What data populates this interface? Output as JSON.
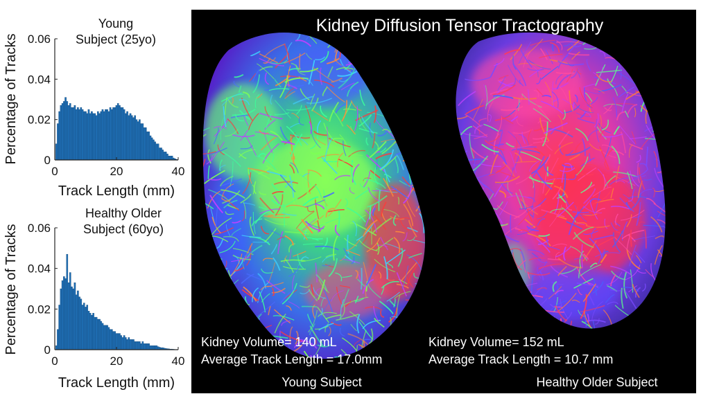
{
  "chart_data": [
    {
      "type": "bar",
      "title": "Young\nSubject (25yo)",
      "xlabel": "Track Length (mm)",
      "ylabel": "Percentage of Tracks",
      "xlim": [
        0,
        40
      ],
      "ylim": [
        0,
        0.06
      ],
      "xticks": [
        "0",
        "20",
        "40"
      ],
      "yticks": [
        "0",
        "0.02",
        "0.04",
        "0.06"
      ],
      "bar_color": "#1f6fb5",
      "x": [
        0.5,
        1,
        1.5,
        2,
        2.5,
        3,
        3.5,
        4,
        4.5,
        5,
        5.5,
        6,
        6.5,
        7,
        7.5,
        8,
        8.5,
        9,
        9.5,
        10,
        10.5,
        11,
        11.5,
        12,
        12.5,
        13,
        13.5,
        14,
        14.5,
        15,
        15.5,
        16,
        16.5,
        17,
        17.5,
        18,
        18.5,
        19,
        19.5,
        20,
        20.5,
        21,
        21.5,
        22,
        22.5,
        23,
        23.5,
        24,
        24.5,
        25,
        25.5,
        26,
        26.5,
        27,
        27.5,
        28,
        28.5,
        29,
        29.5,
        30,
        30.5,
        31,
        31.5,
        32,
        32.5,
        33,
        33.5,
        34,
        34.5,
        35,
        35.5,
        36,
        36.5,
        37,
        37.5,
        38,
        38.5,
        39,
        39.5
      ],
      "values": [
        0.008,
        0.018,
        0.024,
        0.027,
        0.028,
        0.029,
        0.031,
        0.029,
        0.027,
        0.028,
        0.026,
        0.026,
        0.027,
        0.025,
        0.026,
        0.025,
        0.026,
        0.025,
        0.024,
        0.024,
        0.023,
        0.025,
        0.023,
        0.024,
        0.023,
        0.023,
        0.022,
        0.024,
        0.023,
        0.024,
        0.025,
        0.024,
        0.025,
        0.025,
        0.024,
        0.026,
        0.025,
        0.026,
        0.026,
        0.027,
        0.028,
        0.027,
        0.026,
        0.026,
        0.025,
        0.023,
        0.024,
        0.022,
        0.023,
        0.022,
        0.021,
        0.022,
        0.02,
        0.019,
        0.02,
        0.018,
        0.018,
        0.016,
        0.016,
        0.014,
        0.014,
        0.012,
        0.011,
        0.01,
        0.009,
        0.008,
        0.008,
        0.006,
        0.006,
        0.005,
        0.004,
        0.004,
        0.003,
        0.002,
        0.002,
        0.002,
        0.001,
        0.0006,
        0.0003
      ]
    },
    {
      "type": "bar",
      "title": "Healthy Older\nSubject (60yo)",
      "xlabel": "Track Length (mm)",
      "ylabel": "Percentage of Tracks",
      "xlim": [
        0,
        40
      ],
      "ylim": [
        0,
        0.06
      ],
      "xticks": [
        "0",
        "20",
        "40"
      ],
      "yticks": [
        "0",
        "0.02",
        "0.04",
        "0.06"
      ],
      "bar_color": "#1f6fb5",
      "x": [
        0.5,
        1,
        1.5,
        2,
        2.5,
        3,
        3.5,
        4,
        4.5,
        5,
        5.5,
        6,
        6.5,
        7,
        7.5,
        8,
        8.5,
        9,
        9.5,
        10,
        10.5,
        11,
        11.5,
        12,
        12.5,
        13,
        13.5,
        14,
        14.5,
        15,
        15.5,
        16,
        16.5,
        17,
        17.5,
        18,
        18.5,
        19,
        19.5,
        20,
        20.5,
        21,
        21.5,
        22,
        22.5,
        23,
        23.5,
        24,
        24.5,
        25,
        25.5,
        26,
        26.5,
        27,
        27.5,
        28,
        28.5,
        29,
        29.5,
        30,
        30.5,
        31,
        31.5,
        32,
        32.5,
        33,
        33.5,
        34,
        34.5,
        35,
        35.5,
        36,
        36.5,
        37,
        37.5,
        38,
        38.5,
        39,
        39.5
      ],
      "values": [
        0.002,
        0.01,
        0.022,
        0.03,
        0.034,
        0.036,
        0.035,
        0.047,
        0.033,
        0.038,
        0.031,
        0.03,
        0.033,
        0.027,
        0.029,
        0.026,
        0.025,
        0.022,
        0.023,
        0.021,
        0.022,
        0.019,
        0.018,
        0.017,
        0.018,
        0.016,
        0.016,
        0.015,
        0.015,
        0.014,
        0.013,
        0.012,
        0.012,
        0.012,
        0.011,
        0.01,
        0.01,
        0.009,
        0.009,
        0.008,
        0.008,
        0.008,
        0.007,
        0.006,
        0.007,
        0.006,
        0.005,
        0.006,
        0.005,
        0.005,
        0.005,
        0.004,
        0.004,
        0.004,
        0.004,
        0.003,
        0.004,
        0.003,
        0.003,
        0.003,
        0.003,
        0.002,
        0.002,
        0.002,
        0.002,
        0.002,
        0.0015,
        0.0012,
        0.001,
        0.001,
        0.0008,
        0.0006,
        0.0005,
        0.0004,
        0.0003,
        0.0003,
        0.0002,
        0.0001,
        0.0001
      ]
    }
  ],
  "image_panel": {
    "title": "Kidney Diffusion Tensor Tractography",
    "left": {
      "volume": "Kidney Volume= 140 mL",
      "track_length": "Average Track Length = 17.0mm",
      "caption": "Young Subject"
    },
    "right": {
      "volume": "Kidney Volume= 152 mL",
      "track_length": "Average Track Length = 10.7 mm",
      "caption": "Healthy Older Subject"
    }
  }
}
